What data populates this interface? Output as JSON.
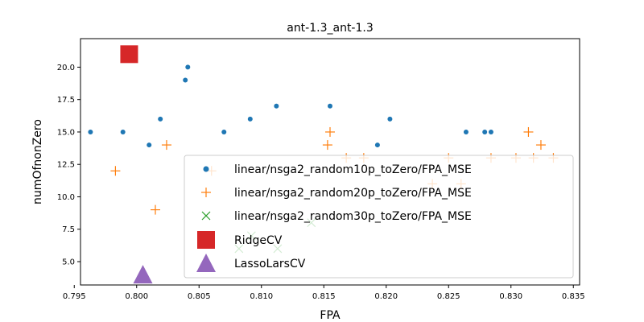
{
  "chart_data": {
    "type": "scatter",
    "title": "ant-1.3_ant-1.3",
    "xlabel": "FPA",
    "ylabel": "numOfnonZero",
    "xlim": [
      0.7955,
      0.8355
    ],
    "ylim": [
      3.2,
      22.2
    ],
    "xticks": [
      "0.795",
      "0.800",
      "0.805",
      "0.810",
      "0.815",
      "0.820",
      "0.825",
      "0.830",
      "0.835"
    ],
    "yticks": [
      "5.0",
      "7.5",
      "10.0",
      "12.5",
      "15.0",
      "17.5",
      "20.0"
    ],
    "grid": false,
    "legend_position": "lower-right",
    "series": [
      {
        "name": "linear/nsga2_random10p_toZero/FPA_MSE",
        "marker": "dot",
        "color": "#1f77b4",
        "points": [
          [
            0.7963,
            15
          ],
          [
            0.7989,
            15
          ],
          [
            0.801,
            14
          ],
          [
            0.8019,
            16
          ],
          [
            0.8039,
            19
          ],
          [
            0.8041,
            20
          ],
          [
            0.807,
            15
          ],
          [
            0.8091,
            16
          ],
          [
            0.8112,
            17
          ],
          [
            0.8155,
            17
          ],
          [
            0.8193,
            14
          ],
          [
            0.8203,
            16
          ],
          [
            0.8264,
            15
          ],
          [
            0.8279,
            15
          ],
          [
            0.8284,
            15
          ]
        ]
      },
      {
        "name": "linear/nsga2_random20p_toZero/FPA_MSE",
        "marker": "plus",
        "color": "#ff7f0e",
        "points": [
          [
            0.7983,
            12
          ],
          [
            0.8015,
            9
          ],
          [
            0.8024,
            14
          ],
          [
            0.806,
            12
          ],
          [
            0.8153,
            14
          ],
          [
            0.8155,
            15
          ],
          [
            0.8168,
            13
          ],
          [
            0.8182,
            13
          ],
          [
            0.8237,
            11
          ],
          [
            0.825,
            13
          ],
          [
            0.826,
            11
          ],
          [
            0.8284,
            13
          ],
          [
            0.8304,
            13
          ],
          [
            0.8314,
            15
          ],
          [
            0.8318,
            13
          ],
          [
            0.8324,
            14
          ],
          [
            0.8334,
            13
          ]
        ]
      },
      {
        "name": "linear/nsga2_random30p_toZero/FPA_MSE",
        "marker": "x",
        "color": "#2ca02c",
        "points": [
          [
            0.8082,
            6
          ],
          [
            0.8092,
            7
          ],
          [
            0.8113,
            6
          ],
          [
            0.814,
            8
          ]
        ]
      },
      {
        "name": "RidgeCV",
        "marker": "square",
        "color": "#d62728",
        "points": [
          [
            0.7994,
            21
          ]
        ]
      },
      {
        "name": "LassoLarsCV",
        "marker": "triangle",
        "color": "#9467bd",
        "points": [
          [
            0.8005,
            4
          ]
        ]
      }
    ]
  }
}
